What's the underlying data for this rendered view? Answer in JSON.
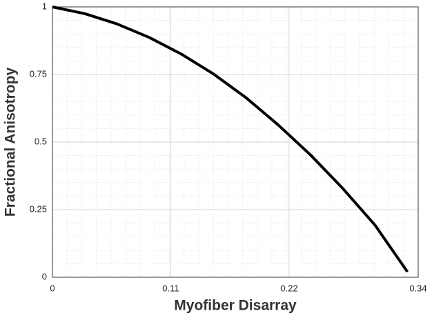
{
  "chart_data": {
    "type": "line",
    "x_label": "Myofiber Disarray",
    "y_label": "Fractional Anisotropy",
    "x": [
      0,
      0.03,
      0.06,
      0.09,
      0.12,
      0.15,
      0.18,
      0.21,
      0.24,
      0.27,
      0.3,
      0.33
    ],
    "series": [
      {
        "color": "#000000",
        "values": [
          1,
          0.975,
          0.937,
          0.887,
          0.825,
          0.751,
          0.664,
          0.563,
          0.452,
          0.328,
          0.192,
          0.02
        ]
      }
    ],
    "xlim": [
      0,
      0.34
    ],
    "xticks": [
      0,
      0.11,
      0.22,
      0.34
    ],
    "ylim": [
      0,
      1
    ],
    "yticks": [
      0,
      0.25,
      0.5,
      0.75,
      1
    ],
    "grid": true,
    "minor_grid": true
  }
}
